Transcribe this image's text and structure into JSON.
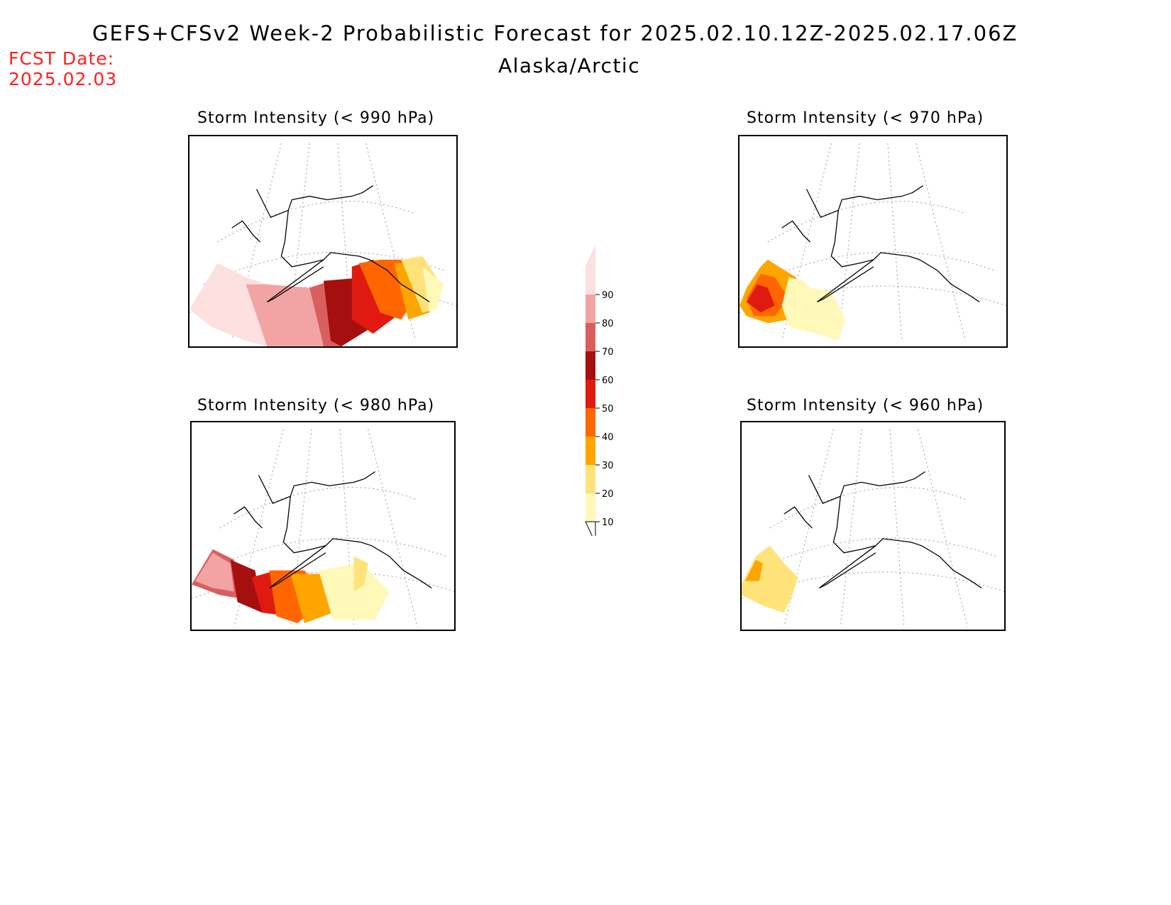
{
  "header": {
    "title": "GEFS+CFSv2 Week-2 Probabilistic Forecast for 2025.02.10.12Z-2025.02.17.06Z",
    "region": "Alaska/Arctic",
    "fcst_label": "FCST Date:",
    "fcst_date": "2025.02.03"
  },
  "panels": [
    {
      "id": "p990",
      "title": "Storm Intensity (< 990 hPa)"
    },
    {
      "id": "p970",
      "title": "Storm Intensity (< 970 hPa)"
    },
    {
      "id": "p980",
      "title": "Storm Intensity (< 980 hPa)"
    },
    {
      "id": "p960",
      "title": "Storm Intensity (< 960 hPa)"
    }
  ],
  "colorbar": {
    "levels": [
      "10",
      "20",
      "30",
      "40",
      "50",
      "60",
      "70",
      "80",
      "90"
    ],
    "colors": [
      "#fff8b8",
      "#ffe37a",
      "#ffa500",
      "#ff6600",
      "#e01a10",
      "#a50f0f",
      "#d95f5f",
      "#f2a3a3",
      "#fde0e0"
    ]
  }
}
